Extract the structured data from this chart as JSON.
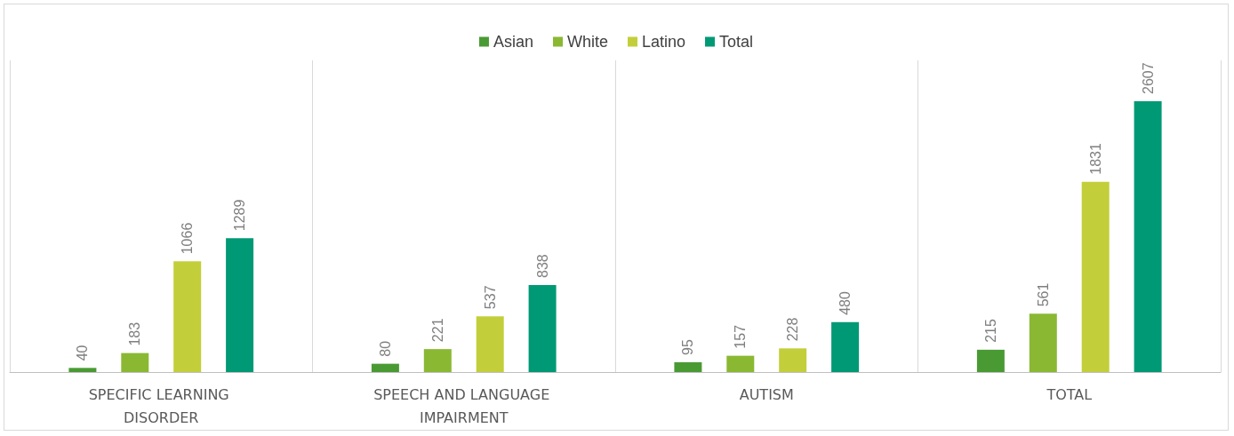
{
  "chart_data": {
    "type": "bar",
    "categories": [
      "SPECIFIC LEARNING DISORDER",
      "SPEECH AND LANGUAGE IMPAIRMENT",
      "AUTISM",
      "TOTAL"
    ],
    "series": [
      {
        "name": "Asian",
        "color": "#4a9a34",
        "values": [
          40,
          80,
          95,
          215
        ]
      },
      {
        "name": "White",
        "color": "#8ab833",
        "values": [
          183,
          221,
          157,
          561
        ]
      },
      {
        "name": "Latino",
        "color": "#c2cf3a",
        "values": [
          1066,
          537,
          228,
          1831
        ]
      },
      {
        "name": "Total",
        "color": "#009975",
        "values": [
          1289,
          838,
          480,
          2607
        ]
      }
    ],
    "data_labels": true,
    "legend": "top",
    "grid": "x",
    "tick_labels": "x"
  }
}
